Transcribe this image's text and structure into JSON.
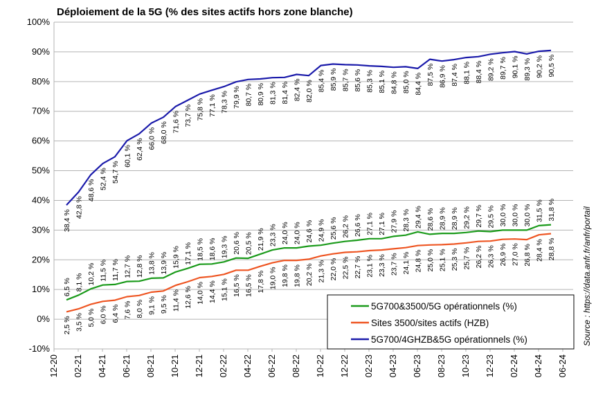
{
  "chart_data": {
    "type": "line",
    "title": "Déploiement de la 5G (% des sites actifs hors zone blanche)",
    "source": "Source : https://data.anfr.fr/anfr/portail",
    "y_ticks": [
      "-10%",
      "0%",
      "10%",
      "20%",
      "30%",
      "40%",
      "50%",
      "60%",
      "70%",
      "80%",
      "90%",
      "100%"
    ],
    "ylim": [
      -10,
      100
    ],
    "x_ticks": [
      "12-20",
      "02-21",
      "04-21",
      "06-21",
      "08-21",
      "10-21",
      "12-21",
      "02-22",
      "04-22",
      "06-22",
      "08-22",
      "10-22",
      "12-22",
      "02-23",
      "04-23",
      "06-23",
      "08-23",
      "10-23",
      "12-23",
      "02-24",
      "04-24",
      "06-24"
    ],
    "x_start": "2021-01",
    "legend_position": "bottom-right",
    "series": [
      {
        "name": "5G700&3500/5G opérationnels (%)",
        "color": "#1a9a1a",
        "values": [
          6.5,
          8.1,
          10.2,
          11.5,
          11.7,
          12.7,
          12.8,
          13.8,
          13.9,
          15.9,
          17.1,
          18.5,
          18.6,
          19.3,
          20.6,
          20.5,
          21.9,
          23.3,
          24.0,
          24.0,
          24.6,
          24.9,
          25.6,
          26.2,
          26.6,
          27.1,
          27.1,
          27.9,
          28.3,
          29.4,
          28.6,
          28.9,
          28.9,
          29.2,
          29.7,
          29.5,
          30.0,
          30.0,
          30.0,
          31.5,
          31.8
        ],
        "labels": [
          "6,5 %",
          "8,1 %",
          "10,2 %",
          "11,5 %",
          "11,7 %",
          "12,7 %",
          "12,8 %",
          "13,8 %",
          "13,9 %",
          "15,9 %",
          "17,1 %",
          "18,5 %",
          "18,6 %",
          "19,3 %",
          "20,6 %",
          "20,5 %",
          "21,9 %",
          "23,3 %",
          "24,0 %",
          "24,0 %",
          "24,6 %",
          "24,9 %",
          "25,6 %",
          "26,2 %",
          "26,6 %",
          "27,1 %",
          "27,1 %",
          "27,9 %",
          "28,3 %",
          "29,4 %",
          "28,6 %",
          "28,9 %",
          "28,9 %",
          "29,2 %",
          "29,7 %",
          "29,5 %",
          "30,0 %",
          "30,0 %",
          "30,0 %",
          "31,5 %",
          "31,8 %"
        ]
      },
      {
        "name": "Sites 3500/sites actifs (HZB)",
        "color": "#ee5522",
        "values": [
          2.5,
          3.5,
          5.0,
          6.0,
          6.4,
          7.6,
          8.0,
          9.1,
          9.5,
          11.4,
          12.6,
          14.0,
          14.4,
          15.1,
          16.5,
          16.5,
          17.8,
          19.0,
          19.8,
          19.8,
          20.2,
          21.3,
          22.0,
          22.5,
          22.7,
          23.1,
          23.3,
          23.7,
          24.1,
          24.8,
          25.0,
          25.1,
          25.3,
          25.7,
          26.2,
          26.3,
          26.9,
          27.0,
          26.8,
          28.4,
          28.8
        ],
        "labels": [
          "2,5 %",
          "3,5 %",
          "5,0 %",
          "6,0 %",
          "6,4 %",
          "7,6 %",
          "8,0 %",
          "9,1 %",
          "9,5 %",
          "11,4 %",
          "12,6 %",
          "14,0 %",
          "14,4 %",
          "15,1 %",
          "16,5 %",
          "16,5 %",
          "17,8 %",
          "19,0 %",
          "19,8 %",
          "19,8 %",
          "20,2 %",
          "21,3 %",
          "22,0 %",
          "22,5 %",
          "22,7 %",
          "23,1 %",
          "23,3 %",
          "23,7 %",
          "24,1 %",
          "24,8 %",
          "25,0 %",
          "25,1 %",
          "25,3 %",
          "25,7 %",
          "26,2 %",
          "26,3 %",
          "26,9 %",
          "27,0 %",
          "26,8 %",
          "28,4 %",
          "28,8 %"
        ]
      },
      {
        "name": "5G700/4GHZB&5G opérationnels (%)",
        "color": "#1a1aaa",
        "values": [
          38.4,
          42.8,
          48.6,
          52.4,
          54.7,
          60.1,
          62.4,
          66.0,
          68.0,
          71.6,
          73.7,
          75.8,
          77.1,
          78.3,
          79.9,
          80.7,
          80.9,
          81.3,
          81.4,
          82.4,
          82.0,
          85.4,
          85.9,
          85.7,
          85.6,
          85.3,
          85.1,
          84.8,
          85.0,
          84.4,
          87.5,
          86.9,
          87.4,
          88.1,
          88.4,
          89.2,
          89.7,
          90.1,
          89.3,
          90.2,
          90.5
        ],
        "labels": [
          "38,4 %",
          "42,8 %",
          "48,6 %",
          "52,4 %",
          "54,7 %",
          "60,1 %",
          "62,4 %",
          "66,0 %",
          "68,0 %",
          "71,6 %",
          "73,7 %",
          "75,8 %",
          "77,1 %",
          "78,3 %",
          "79,9 %",
          "80,7 %",
          "80,9 %",
          "81,3 %",
          "81,4 %",
          "82,4 %",
          "82,0 %",
          "85,4 %",
          "85,9 %",
          "85,7 %",
          "85,6 %",
          "85,3 %",
          "85,1 %",
          "84,8 %",
          "85,0 %",
          "84,4 %",
          "87,5 %",
          "86,9 %",
          "87,4 %",
          "88,1 %",
          "88,4 %",
          "89,2 %",
          "89,7 %",
          "90,1 %",
          "89,3 %",
          "90,2 %",
          "90,5 %"
        ]
      }
    ]
  }
}
